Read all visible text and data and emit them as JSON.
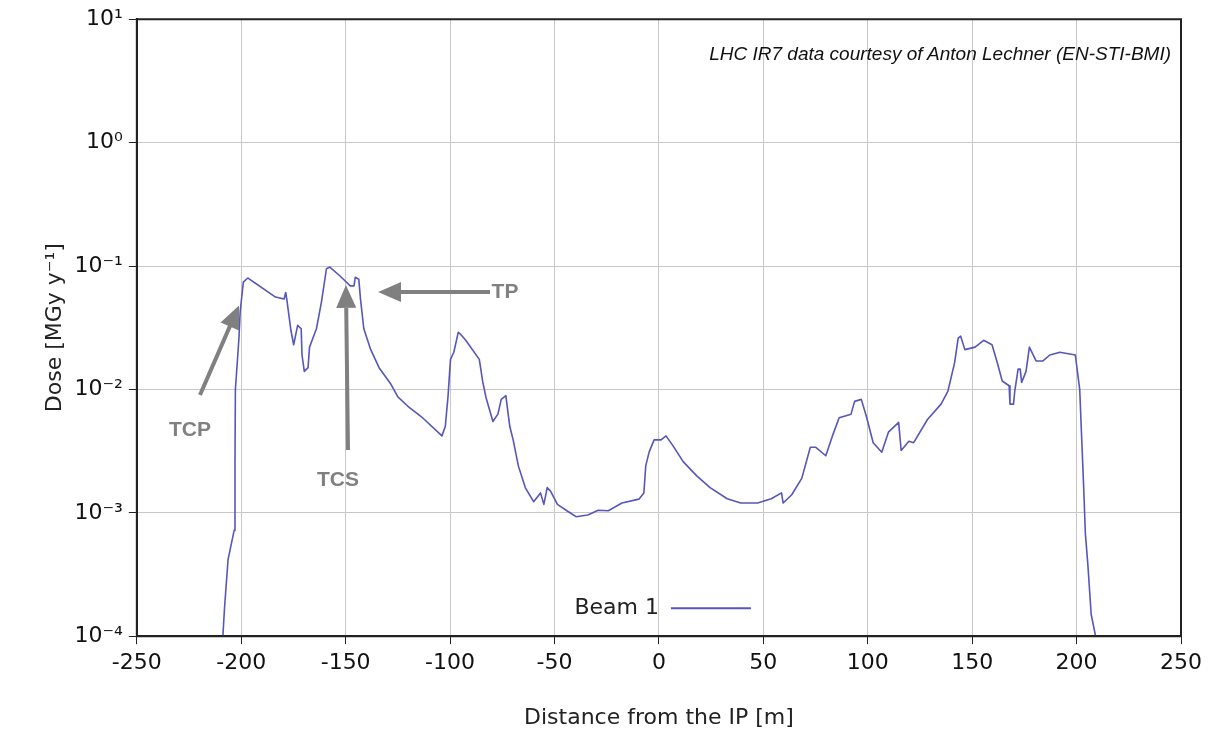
{
  "chart_data": {
    "type": "line",
    "xlabel": "Distance from the IP [m]",
    "ylabel": "Dose [MGy y⁻¹]",
    "log": "y",
    "grid": true,
    "legend": "bottom",
    "marker": "none",
    "line_style": "solid",
    "xlim": [
      -250,
      250
    ],
    "xticks": [
      -250,
      -200,
      -150,
      -100,
      -50,
      0,
      50,
      100,
      150,
      200,
      250
    ],
    "ylim": [
      0.0001,
      10
    ],
    "yticks": [
      {
        "value": 0.0001,
        "label": "10⁻⁴"
      },
      {
        "value": 0.001,
        "label": "10⁻³"
      },
      {
        "value": 0.01,
        "label": "10⁻²"
      },
      {
        "value": 0.1,
        "label": "10⁻¹"
      },
      {
        "value": 1,
        "label": "10⁰"
      },
      {
        "value": 10,
        "label": "10¹"
      }
    ],
    "annotations": [
      "LHC IR7 data courtesy of Anton Lechner (EN-STI-BMI)",
      "TCP",
      "TCS",
      "TP"
    ],
    "series": [
      {
        "name": "Beam 1",
        "color": "#5656bc",
        "x": [
          -208.8,
          -208,
          -206.3,
          -203.4,
          -203,
          -202.8,
          -201.1,
          -200.5,
          -199,
          -196.9,
          -183.6,
          -179.5,
          -178.7,
          -178.2,
          -176.2,
          -174.9,
          -173,
          -171.3,
          -170.9,
          -169.8,
          -168,
          -167.3,
          -164,
          -161.6,
          -159.2,
          -157.6,
          -152.7,
          -147.8,
          -146,
          -145.4,
          -143.7,
          -142.9,
          -141.3,
          -138,
          -134,
          -128.3,
          -125,
          -120.2,
          -113.7,
          -103.9,
          -102.3,
          -101,
          -99.8,
          -98.2,
          -96.1,
          -95,
          -92.5,
          -86,
          -84.4,
          -82.8,
          -79.5,
          -77.1,
          -75.5,
          -73.3,
          -71.4,
          -69.8,
          -67.3,
          -64,
          -60,
          -56.7,
          -55.1,
          -53.5,
          -51.9,
          -48.6,
          -43.7,
          -39.7,
          -34,
          -29.1,
          -24.2,
          -17.7,
          -9.6,
          -7.2,
          -6.3,
          -4.7,
          -2.3,
          1,
          3.4,
          6.7,
          11.6,
          18,
          24.5,
          32.7,
          39.2,
          47.3,
          53.8,
          58.7,
          59.5,
          63.6,
          68.4,
          72.5,
          75,
          79.9,
          83.1,
          86.3,
          92,
          93.7,
          96.9,
          99.4,
          102.6,
          106.7,
          109.9,
          114.8,
          116,
          119.7,
          122,
          128.6,
          135.1,
          138.4,
          141.6,
          143.3,
          144.5,
          146.5,
          151.4,
          155.5,
          159.5,
          162,
          164.4,
          167.7,
          168.1,
          169.8,
          170.4,
          172,
          173,
          173.7,
          175.8,
          177.4,
          180.6,
          183.9,
          187.2,
          192,
          199.4,
          201.5,
          202.3,
          203.4,
          204.2,
          205.4,
          207,
          209.1
        ],
        "values": [
          0.0001,
          0.00017,
          0.00042,
          0.00072,
          0.0025,
          0.01,
          0.026,
          0.043,
          0.074,
          0.08,
          0.056,
          0.054,
          0.061,
          0.054,
          0.03,
          0.023,
          0.033,
          0.031,
          0.019,
          0.014,
          0.015,
          0.022,
          0.031,
          0.051,
          0.095,
          0.098,
          0.083,
          0.069,
          0.069,
          0.081,
          0.078,
          0.054,
          0.031,
          0.021,
          0.015,
          0.011,
          0.0087,
          0.0073,
          0.006,
          0.0042,
          0.005,
          0.0087,
          0.0175,
          0.02,
          0.029,
          0.028,
          0.025,
          0.0175,
          0.0116,
          0.0086,
          0.0055,
          0.0063,
          0.0083,
          0.0089,
          0.005,
          0.0039,
          0.0024,
          0.0016,
          0.00123,
          0.00145,
          0.00117,
          0.0016,
          0.0015,
          0.00117,
          0.00103,
          0.00093,
          0.00096,
          0.00105,
          0.00104,
          0.0012,
          0.00129,
          0.00145,
          0.0024,
          0.0031,
          0.0039,
          0.0039,
          0.0042,
          0.0035,
          0.0026,
          0.002,
          0.0016,
          0.0013,
          0.0012,
          0.0012,
          0.0013,
          0.00145,
          0.0012,
          0.0014,
          0.0019,
          0.0034,
          0.0034,
          0.0029,
          0.0042,
          0.0059,
          0.0063,
          0.008,
          0.0083,
          0.006,
          0.0037,
          0.0031,
          0.0045,
          0.0054,
          0.0032,
          0.0038,
          0.0037,
          0.0057,
          0.0076,
          0.0097,
          0.0165,
          0.026,
          0.027,
          0.021,
          0.022,
          0.025,
          0.023,
          0.0165,
          0.0117,
          0.0107,
          0.0076,
          0.0076,
          0.0097,
          0.0146,
          0.0146,
          0.0114,
          0.014,
          0.022,
          0.017,
          0.017,
          0.019,
          0.02,
          0.019,
          0.01,
          0.0046,
          0.0016,
          0.00068,
          0.00038,
          0.00015,
          0.0001
        ]
      }
    ]
  }
}
